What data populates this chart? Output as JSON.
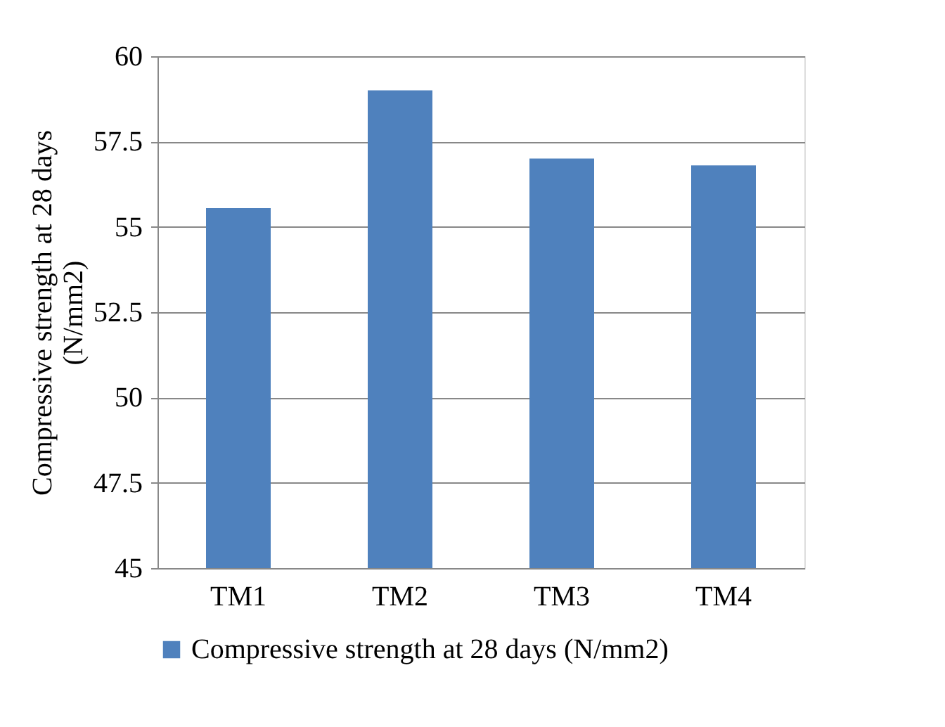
{
  "chart_data": {
    "type": "bar",
    "categories": [
      "TM1",
      "TM2",
      "TM3",
      "TM4"
    ],
    "series": [
      {
        "name": "Compressive strength at 28 days (N/mm2)",
        "color": "#4f81bd",
        "values": [
          55.55,
          59.0,
          57.0,
          56.8
        ]
      }
    ],
    "ylabel": "Compressive strength at 28 days (N/mm2)",
    "ylim": [
      45,
      60
    ],
    "yticks": [
      45,
      47.5,
      50,
      52.5,
      55,
      57.5,
      60
    ],
    "grid": "y",
    "legend": "bottom"
  }
}
